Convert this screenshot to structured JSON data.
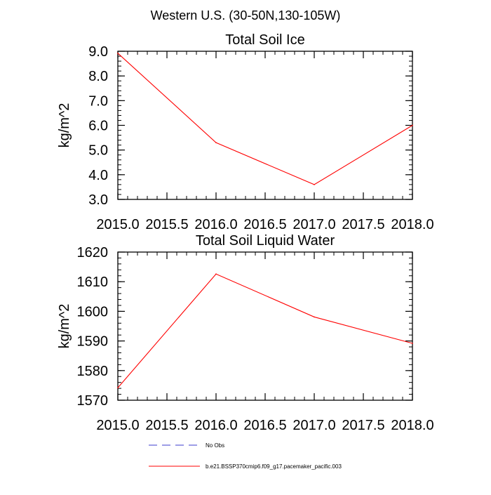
{
  "figure_title": "Western U.S. (30-50N,130-105W)",
  "chart_data": [
    {
      "type": "line",
      "title": "Total Soil Ice",
      "xlabel": "",
      "ylabel": "kg/m^2",
      "xlim": [
        2015.0,
        2018.0
      ],
      "ylim": [
        3.0,
        9.0
      ],
      "x_major_ticks": [
        2015.0,
        2015.5,
        2016.0,
        2016.5,
        2017.0,
        2017.5,
        2018.0
      ],
      "x_tick_labels": [
        "2015.0",
        "2015.5",
        "2016.0",
        "2016.5",
        "2017.0",
        "2017.5",
        "2018.0"
      ],
      "x_minor_step": 0.1,
      "y_major_ticks": [
        3.0,
        4.0,
        5.0,
        6.0,
        7.0,
        8.0,
        9.0
      ],
      "y_tick_labels": [
        "3.0",
        "4.0",
        "5.0",
        "6.0",
        "7.0",
        "8.0",
        "9.0"
      ],
      "y_minor_step": 0.2,
      "grid": false,
      "series": [
        {
          "name": "b.e21.BSSP370cmip6.f09_g17.pacemaker_pacific.003",
          "color": "#ff0000",
          "x": [
            2015,
            2016,
            2017,
            2018
          ],
          "y": [
            8.92,
            5.3,
            3.6,
            6.0
          ]
        }
      ]
    },
    {
      "type": "line",
      "title": "Total Soil Liquid Water",
      "xlabel": "",
      "ylabel": "kg/m^2",
      "xlim": [
        2015.0,
        2018.0
      ],
      "ylim": [
        1570,
        1620
      ],
      "x_major_ticks": [
        2015.0,
        2015.5,
        2016.0,
        2016.5,
        2017.0,
        2017.5,
        2018.0
      ],
      "x_tick_labels": [
        "2015.0",
        "2015.5",
        "2016.0",
        "2016.5",
        "2017.0",
        "2017.5",
        "2018.0"
      ],
      "x_minor_step": 0.1,
      "y_major_ticks": [
        1570,
        1580,
        1590,
        1600,
        1610,
        1620
      ],
      "y_tick_labels": [
        "1570",
        "1580",
        "1590",
        "1600",
        "1610",
        "1620"
      ],
      "y_minor_step": 2,
      "grid": false,
      "series": [
        {
          "name": "b.e21.BSSP370cmip6.f09_g17.pacemaker_pacific.003",
          "color": "#ff0000",
          "x": [
            2015,
            2016,
            2017,
            2018
          ],
          "y": [
            1574.2,
            1612.6,
            1598.1,
            1589.2
          ]
        }
      ]
    }
  ],
  "legend": {
    "placement": "bottom",
    "entries": [
      {
        "label": "No Obs",
        "color": "#3b3bcc",
        "dash": "dashed"
      },
      {
        "label": "b.e21.BSSP370cmip6.f09_g17.pacemaker_pacific.003",
        "color": "#ff0000",
        "dash": "solid"
      }
    ]
  }
}
